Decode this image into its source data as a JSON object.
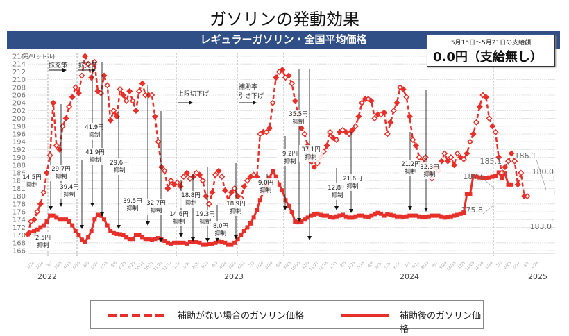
{
  "title": "ガソリンの発動効果",
  "banner": "レギュラーガソリン・全国平均価格",
  "infobox": {
    "period": "5月15日～5月21日の支給額",
    "amount": "0.0円（支給無し）"
  },
  "legend": {
    "dashed": "補助がない場合のガソリン価格",
    "solid": "補助後のガソリン価格"
  },
  "colors": {
    "series": "#e8302a",
    "banner": "#2f4f86"
  },
  "chart_data": {
    "type": "line",
    "title": "レギュラーガソリン・全国平均価格",
    "ylabel": "(円/リットル)",
    "ylim": [
      166,
      216
    ],
    "yticks": [
      166,
      168,
      170,
      172,
      174,
      176,
      178,
      180,
      182,
      184,
      186,
      188,
      190,
      192,
      194,
      196,
      198,
      200,
      202,
      204,
      206,
      208,
      210,
      212,
      214,
      216
    ],
    "years": [
      "2022",
      "2023",
      "2024",
      "2025"
    ],
    "xticks": [
      "1/24",
      "2/14",
      "3/7",
      "3/28",
      "4/18",
      "5/16",
      "6/6",
      "6/27",
      "7/18",
      "8/8",
      "8/29",
      "9/20",
      "10/11",
      "10/31",
      "11/21",
      "12/12",
      "1/10",
      "1/30",
      "2/20",
      "3/13",
      "4/3",
      "4/24",
      "5/22",
      "6/12",
      "7/3",
      "7/24",
      "8/14",
      "9/4",
      "9/25",
      "10/16",
      "11/6",
      "11/27",
      "12/18",
      "1/15",
      "2/5",
      "2/26",
      "3/18",
      "4/8",
      "4/30",
      "5/20",
      "6/10",
      "7/1",
      "7/22",
      "8/13",
      "9/2",
      "9/24",
      "10/15",
      "11/5",
      "11/25",
      "12/16",
      "1/14",
      "2/3",
      "2/25",
      "3/17",
      "4/7",
      "4/28"
    ],
    "series": [
      {
        "name": "補助がない場合のガソリン価格",
        "style": "dashed",
        "values": [
          170.2,
          173.5,
          174,
          176,
          178,
          181,
          186,
          190.5,
          204,
          193,
          192,
          198,
          200,
          203,
          205.5,
          208,
          206.5,
          211,
          216,
          214,
          210.5,
          214.5,
          207,
          206.5,
          211,
          208.5,
          199.5,
          202,
          200.5,
          207.5,
          206,
          204.5,
          207,
          204.5,
          202,
          207,
          209,
          206,
          206,
          206,
          200.5,
          194,
          187.5,
          186.5,
          182,
          184,
          183,
          183.5,
          182.5,
          185,
          186,
          184.5,
          185,
          186,
          185.5,
          184,
          180,
          178,
          181,
          185.5,
          186.5,
          185,
          181.5,
          179,
          181,
          182,
          180,
          179.5,
          182.5,
          184,
          185,
          185.5,
          185,
          196,
          196.5,
          196.5,
          197.5,
          204,
          210.5,
          212,
          212.5,
          210.5,
          211,
          209,
          204.5,
          201,
          197.5,
          196,
          193,
          189,
          187.5,
          188.5,
          190,
          191.5,
          193,
          196.5,
          195,
          194.5,
          196.5,
          197,
          196.5,
          196,
          197,
          198,
          200.5,
          204,
          205,
          205,
          204.5,
          200,
          201,
          201,
          201.5,
          196,
          199,
          202,
          204,
          208,
          207.5,
          205.5,
          200.5,
          194.5,
          193,
          190,
          189,
          190,
          186,
          184.5,
          187.5,
          186.5,
          189,
          191,
          189,
          190,
          188,
          191,
          190,
          189.5,
          191,
          194,
          196,
          199,
          203,
          206,
          205.5,
          200,
          198,
          196.5,
          190,
          186,
          187.5,
          189,
          191,
          189,
          183,
          186,
          180,
          180.0
        ]
      },
      {
        "name": "補助後のガソリン価格",
        "style": "solid",
        "values": [
          170.2,
          170.6,
          171,
          171.4,
          172,
          172.5,
          173.5,
          175,
          175,
          174.5,
          174,
          174,
          174,
          173.5,
          172.5,
          171,
          170,
          168.8,
          168.3,
          169.5,
          171,
          174,
          175.2,
          175,
          174,
          172.5,
          171,
          170.5,
          170.3,
          170.2,
          170,
          169.5,
          169,
          169,
          170,
          170,
          169.5,
          169,
          169,
          168.8,
          169,
          169.2,
          169,
          168.5,
          168,
          167.8,
          168,
          168,
          168,
          168,
          167.8,
          168.2,
          168.3,
          168.2,
          168,
          167.5,
          167.5,
          167.7,
          167.8,
          168,
          168.4,
          168.2,
          168,
          167.5,
          167.5,
          168,
          169,
          170,
          171,
          172,
          173,
          174.5,
          176.5,
          179,
          181,
          183,
          184.8,
          186.5,
          185,
          183,
          181.5,
          179,
          177.5,
          176,
          173.5,
          173.3,
          173.5,
          174,
          174.5,
          175,
          175.3,
          175.5,
          175.2,
          175,
          175,
          174.7,
          174.5,
          174.8,
          175,
          175.2,
          174.8,
          174.5,
          174.5,
          174.8,
          175,
          175,
          174.8,
          174.6,
          175,
          175.4,
          175.7,
          175.5,
          175,
          175.4,
          175.2,
          175,
          174.8,
          174.8,
          174.7,
          174.8,
          175,
          175,
          175,
          174.8,
          174.7,
          174.7,
          174.8,
          175,
          175,
          175,
          174.8,
          174.5,
          174.6,
          174.8,
          175,
          175.2,
          175.5,
          175.8,
          180.6,
          180.6,
          185.1,
          185,
          184.8,
          184.6,
          184.6,
          184.8,
          185,
          185.2,
          186.1,
          184.7,
          185.8,
          183,
          183.0
        ]
      }
    ],
    "annotations": [
      {
        "text": "拡充策",
        "kind": "policy"
      },
      {
        "text": "拡充策",
        "kind": "policy"
      },
      {
        "text": "上限切下げ",
        "kind": "policy"
      },
      {
        "text": "補助率",
        "kind": "policy"
      },
      {
        "text": "引き下げ",
        "kind": "policy"
      },
      {
        "text": "2.5円",
        "sub": "抑制"
      },
      {
        "text": "14.5円",
        "sub": "抑制"
      },
      {
        "text": "29.7円",
        "sub": "抑制"
      },
      {
        "text": "39.4円",
        "sub": "抑制"
      },
      {
        "text": "41.9円",
        "sub": "抑制"
      },
      {
        "text": "41.9円",
        "sub": "抑制"
      },
      {
        "text": "29.6円",
        "sub": "抑制"
      },
      {
        "text": "39.5円",
        "sub": "抑制"
      },
      {
        "text": "32.7円",
        "sub": "抑制"
      },
      {
        "text": "14.6円",
        "sub": "抑制"
      },
      {
        "text": "18.8円",
        "sub": "抑制"
      },
      {
        "text": "19.3円",
        "sub": "抑制"
      },
      {
        "text": "8.0円",
        "sub": "抑制"
      },
      {
        "text": "18.9円",
        "sub": "抑制"
      },
      {
        "text": "9.0円",
        "sub": "抑制"
      },
      {
        "text": "9.2円",
        "sub": "抑制"
      },
      {
        "text": "35.5円",
        "sub": "抑制"
      },
      {
        "text": "37.1円",
        "sub": "抑制"
      },
      {
        "text": "12.8円",
        "sub": "抑制"
      },
      {
        "text": "21.6円",
        "sub": "抑制"
      },
      {
        "text": "21.2円",
        "sub": "抑制"
      },
      {
        "text": "32.3円",
        "sub": "抑制"
      }
    ],
    "value_labels": [
      "180.6",
      "175.8",
      "185.1",
      "186.1",
      "180.0",
      "183.0"
    ]
  }
}
